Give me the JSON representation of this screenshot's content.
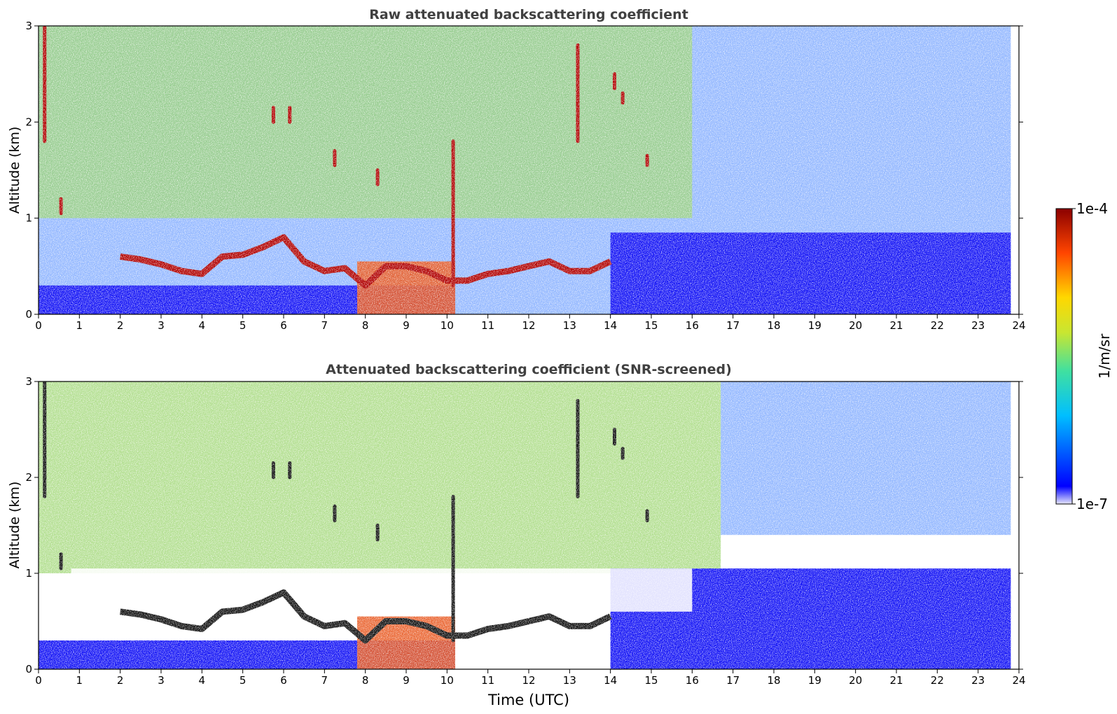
{
  "chart_data": [
    {
      "type": "heatmap",
      "title": "Raw attenuated backscattering coefficient",
      "xlabel": "",
      "ylabel": "Altitude (km)",
      "xlim": [
        0,
        24
      ],
      "ylim": [
        0,
        3
      ],
      "xticks": [
        "0",
        "1",
        "2",
        "3",
        "4",
        "5",
        "6",
        "7",
        "8",
        "9",
        "10",
        "11",
        "12",
        "13",
        "14",
        "15",
        "16",
        "17",
        "18",
        "19",
        "20",
        "21",
        "22",
        "23",
        "24"
      ],
      "yticks": [
        "0",
        "1",
        "2",
        "3"
      ],
      "colorscale": "jet",
      "layers": [
        {
          "x": [
            0,
            23.8
          ],
          "y": [
            0,
            3
          ],
          "level": "sparse"
        },
        {
          "x": [
            0,
            16
          ],
          "y": [
            1.0,
            3
          ],
          "level": "moderate"
        },
        {
          "x": [
            0,
            10.2
          ],
          "y": [
            0,
            0.3
          ],
          "level": "boundary-layer"
        },
        {
          "x": [
            14,
            23.8
          ],
          "y": [
            0,
            0.85
          ],
          "level": "boundary-layer"
        }
      ],
      "cloud_layer": {
        "description": "strong aerosol/cloud layer top",
        "x": [
          2.0,
          2.5,
          3.0,
          3.5,
          4.0,
          4.5,
          5.0,
          5.5,
          6.0,
          6.5,
          7.0,
          7.5,
          8.0,
          8.5,
          9.0,
          9.5,
          10.0,
          10.5,
          11.0,
          11.5,
          12.0,
          12.5,
          13.0,
          13.5,
          14.0
        ],
        "y": [
          0.6,
          0.57,
          0.52,
          0.45,
          0.42,
          0.6,
          0.62,
          0.7,
          0.8,
          0.55,
          0.45,
          0.48,
          0.3,
          0.5,
          0.5,
          0.45,
          0.35,
          0.35,
          0.42,
          0.45,
          0.5,
          0.55,
          0.45,
          0.45,
          0.55
        ]
      },
      "intense_region": {
        "x": [
          7.8,
          10.2
        ],
        "y": [
          0,
          0.55
        ]
      },
      "spikes": [
        {
          "x": 0.15,
          "y": [
            1.8,
            3
          ]
        },
        {
          "x": 0.55,
          "y": [
            1.05,
            1.2
          ]
        },
        {
          "x": 5.75,
          "y": [
            2.0,
            2.15
          ]
        },
        {
          "x": 6.15,
          "y": [
            2.0,
            2.15
          ]
        },
        {
          "x": 7.25,
          "y": [
            1.55,
            1.7
          ]
        },
        {
          "x": 8.3,
          "y": [
            1.35,
            1.5
          ]
        },
        {
          "x": 10.15,
          "y": [
            0.3,
            1.8
          ]
        },
        {
          "x": 13.2,
          "y": [
            1.8,
            2.8
          ]
        },
        {
          "x": 14.1,
          "y": [
            2.35,
            2.5
          ]
        },
        {
          "x": 14.3,
          "y": [
            2.2,
            2.3
          ]
        },
        {
          "x": 14.9,
          "y": [
            1.55,
            1.65
          ]
        }
      ]
    },
    {
      "type": "heatmap",
      "title": "Attenuated backscattering coefficient (SNR-screened)",
      "xlabel": "Time (UTC)",
      "ylabel": "Altitude (km)",
      "xlim": [
        0,
        24
      ],
      "ylim": [
        0,
        3
      ],
      "xticks": [
        "0",
        "1",
        "2",
        "3",
        "4",
        "5",
        "6",
        "7",
        "8",
        "9",
        "10",
        "11",
        "12",
        "13",
        "14",
        "15",
        "16",
        "17",
        "18",
        "19",
        "20",
        "21",
        "22",
        "23",
        "24"
      ],
      "yticks": [
        "0",
        "1",
        "2",
        "3"
      ],
      "colorscale": "jet",
      "layers": [
        {
          "x": [
            0,
            16.7
          ],
          "y": [
            1.0,
            3
          ],
          "level": "moderate"
        },
        {
          "x": [
            16.7,
            23.8
          ],
          "y": [
            1.4,
            3
          ],
          "level": "sparse"
        },
        {
          "x": [
            0,
            10.2
          ],
          "y": [
            0,
            0.3
          ],
          "level": "boundary-layer"
        },
        {
          "x": [
            14,
            23.8
          ],
          "y": [
            0,
            1.05
          ],
          "level": "boundary-layer"
        }
      ],
      "screened_gap": {
        "x": [
          0.8,
          16
        ],
        "y": [
          0.6,
          1.05
        ]
      },
      "cloud_layer": {
        "description": "strong aerosol/cloud layer top",
        "x": [
          2.0,
          2.5,
          3.0,
          3.5,
          4.0,
          4.5,
          5.0,
          5.5,
          6.0,
          6.5,
          7.0,
          7.5,
          8.0,
          8.5,
          9.0,
          9.5,
          10.0,
          10.5,
          11.0,
          11.5,
          12.0,
          12.5,
          13.0,
          13.5,
          14.0
        ],
        "y": [
          0.6,
          0.57,
          0.52,
          0.45,
          0.42,
          0.6,
          0.62,
          0.7,
          0.8,
          0.55,
          0.45,
          0.48,
          0.3,
          0.5,
          0.5,
          0.45,
          0.35,
          0.35,
          0.42,
          0.45,
          0.5,
          0.55,
          0.45,
          0.45,
          0.55
        ]
      },
      "intense_region": {
        "x": [
          7.8,
          10.2
        ],
        "y": [
          0,
          0.55
        ]
      },
      "spikes": [
        {
          "x": 0.15,
          "y": [
            1.8,
            3
          ]
        },
        {
          "x": 0.55,
          "y": [
            1.05,
            1.2
          ]
        },
        {
          "x": 5.75,
          "y": [
            2.0,
            2.15
          ]
        },
        {
          "x": 6.15,
          "y": [
            2.0,
            2.15
          ]
        },
        {
          "x": 7.25,
          "y": [
            1.55,
            1.7
          ]
        },
        {
          "x": 8.3,
          "y": [
            1.35,
            1.5
          ]
        },
        {
          "x": 10.15,
          "y": [
            0.3,
            1.8
          ]
        },
        {
          "x": 13.2,
          "y": [
            1.8,
            2.8
          ]
        },
        {
          "x": 14.1,
          "y": [
            2.35,
            2.5
          ]
        },
        {
          "x": 14.3,
          "y": [
            2.2,
            2.3
          ]
        },
        {
          "x": 14.9,
          "y": [
            1.55,
            1.65
          ]
        }
      ]
    }
  ],
  "colorbar": {
    "label": "1/m/sr",
    "max_label": "1e-4",
    "min_label": "1e-7",
    "scale": "log",
    "range": [
      1e-07,
      0.0001
    ],
    "colors": [
      "#e6e6fa",
      "#0000ff",
      "#00bfff",
      "#40e0a0",
      "#c8e632",
      "#ffd700",
      "#ff4500",
      "#8b0000"
    ]
  }
}
